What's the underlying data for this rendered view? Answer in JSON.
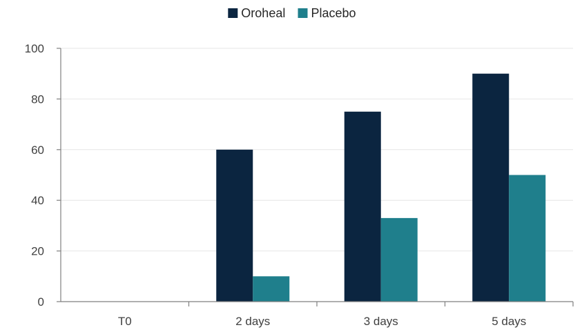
{
  "chart_data": {
    "type": "bar",
    "categories": [
      "T0",
      "2 days",
      "3 days",
      "5 days"
    ],
    "series": [
      {
        "name": "Oroheal",
        "color": "#0b2540",
        "values": [
          0,
          60,
          75,
          90
        ]
      },
      {
        "name": "Placebo",
        "color": "#1f7f8c",
        "values": [
          0,
          10,
          33,
          50
        ]
      }
    ],
    "yticks": [
      0,
      20,
      40,
      60,
      80,
      100
    ],
    "ylim": [
      0,
      100
    ],
    "grid": true,
    "legend_position": "top-center"
  }
}
